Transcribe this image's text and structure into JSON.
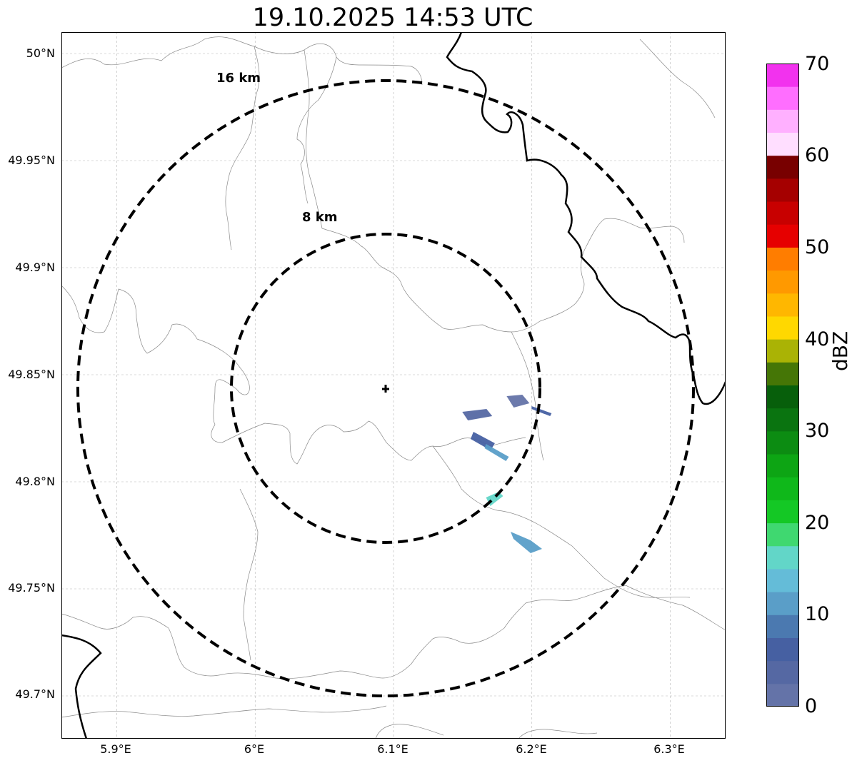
{
  "title": "19.10.2025 14:53 UTC",
  "map": {
    "extent": {
      "lon_min": 5.86,
      "lon_max": 6.34,
      "lat_min": 49.68,
      "lat_max": 50.01
    },
    "gridlines": true,
    "radar_site": {
      "lon": 6.095,
      "lat": 49.843,
      "marker": "plus"
    },
    "y_ticks": [
      {
        "label": "50°N",
        "lat": 50.0
      },
      {
        "label": "49.95°N",
        "lat": 49.95
      },
      {
        "label": "49.9°N",
        "lat": 49.9
      },
      {
        "label": "49.85°N",
        "lat": 49.85
      },
      {
        "label": "49.8°N",
        "lat": 49.8
      },
      {
        "label": "49.75°N",
        "lat": 49.75
      },
      {
        "label": "49.7°N",
        "lat": 49.7
      }
    ],
    "x_ticks": [
      {
        "label": "5.9°E",
        "lon": 5.9
      },
      {
        "label": "6°E",
        "lon": 6.0
      },
      {
        "label": "6.1°E",
        "lon": 6.1
      },
      {
        "label": "6.2°E",
        "lon": 6.2
      },
      {
        "label": "6.3°E",
        "lon": 6.3
      }
    ],
    "range_rings": [
      {
        "label": "8 km",
        "radius_km": 8
      },
      {
        "label": "16 km",
        "radius_km": 16
      }
    ],
    "echoes": [
      {
        "lon": 6.16,
        "lat": 49.832,
        "dbz": 3
      },
      {
        "lon": 6.165,
        "lat": 49.82,
        "dbz": 6
      },
      {
        "lon": 6.172,
        "lat": 49.815,
        "dbz": 12
      },
      {
        "lon": 6.19,
        "lat": 49.838,
        "dbz": 2
      },
      {
        "lon": 6.207,
        "lat": 49.834,
        "dbz": 6
      },
      {
        "lon": 6.172,
        "lat": 49.792,
        "dbz": 16
      },
      {
        "lon": 6.196,
        "lat": 49.772,
        "dbz": 12
      }
    ]
  },
  "colorbar": {
    "label": "dBZ",
    "min": 0,
    "max": 70,
    "step": 2.5,
    "colors": [
      "#6473a8",
      "#5568a3",
      "#4660a2",
      "#4b79b0",
      "#5a9ec8",
      "#64bcd8",
      "#62d6c8",
      "#3fd870",
      "#14c825",
      "#0fb81a",
      "#0da514",
      "#0c8c12",
      "#0a7410",
      "#075f0b",
      "#457606",
      "#aab305",
      "#ffd800",
      "#ffb700",
      "#ff9900",
      "#ff7d00",
      "#e60000",
      "#c80000",
      "#a50000",
      "#780000",
      "#ffdeff",
      "#ffb0ff",
      "#ff6eff",
      "#f232ee"
    ],
    "ticks": [
      {
        "label": "0",
        "value": 0
      },
      {
        "label": "10",
        "value": 10
      },
      {
        "label": "20",
        "value": 20
      },
      {
        "label": "30",
        "value": 30
      },
      {
        "label": "40",
        "value": 40
      },
      {
        "label": "50",
        "value": 50
      },
      {
        "label": "60",
        "value": 60
      },
      {
        "label": "70",
        "value": 70
      }
    ]
  }
}
